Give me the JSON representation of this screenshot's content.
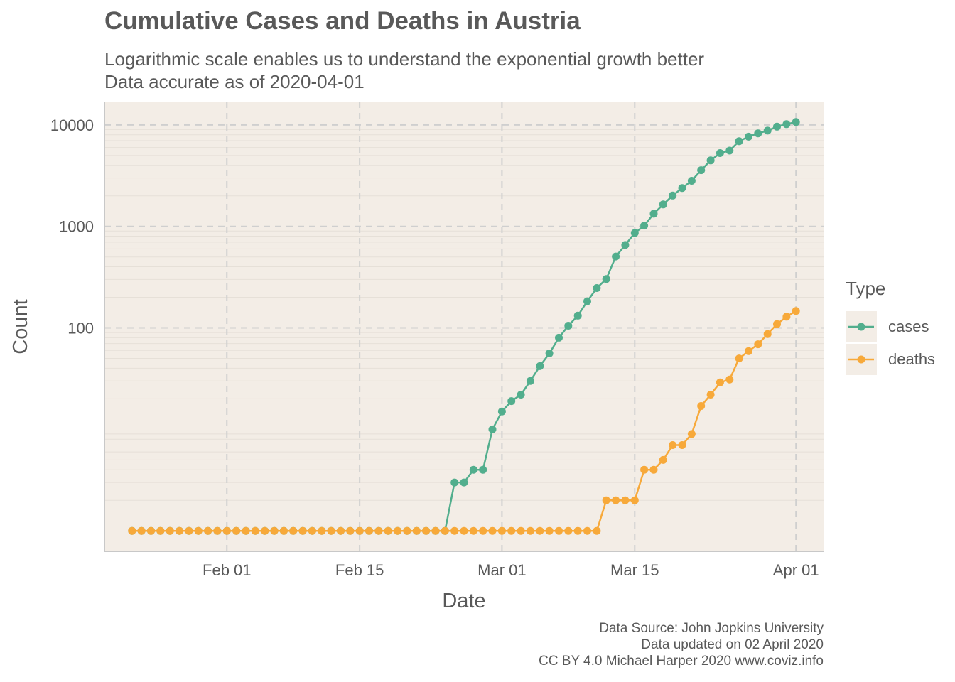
{
  "title": "Cumulative Cases and Deaths in Austria",
  "subtitle": [
    "Logarithmic scale enables us to understand the exponential growth better",
    "Data accurate as of 2020-04-01"
  ],
  "caption": [
    "Data Source: John Jopkins University",
    "Data updated on 02 April 2020",
    "CC BY 4.0 Michael Harper 2020 www.coviz.info"
  ],
  "colors": {
    "cases": "#52AE8D",
    "deaths": "#F7A93A",
    "panel": "#F3EDE6",
    "grid": "#CFCFCF"
  },
  "chart_data": {
    "type": "line",
    "title": "Cumulative Cases and Deaths in Austria",
    "xlabel": "Date",
    "ylabel": "Count",
    "y_scale": "log",
    "x_range": [
      "2020-01-22",
      "2020-04-01"
    ],
    "y_range": [
      1,
      10685
    ],
    "x_ticks": [
      {
        "date": "2020-02-01",
        "label": "Feb 01"
      },
      {
        "date": "2020-02-15",
        "label": "Feb 15"
      },
      {
        "date": "2020-03-01",
        "label": "Mar 01"
      },
      {
        "date": "2020-03-15",
        "label": "Mar 15"
      },
      {
        "date": "2020-04-01",
        "label": "Apr 01"
      }
    ],
    "y_ticks": [
      {
        "value": 100,
        "label": "100"
      },
      {
        "value": 1000,
        "label": "1000"
      },
      {
        "value": 10000,
        "label": "10000"
      }
    ],
    "grid": true,
    "legend_title": "Type",
    "legend_position": "right",
    "series": [
      {
        "name": "cases",
        "points": [
          [
            "2020-01-22",
            0
          ],
          [
            "2020-01-23",
            0
          ],
          [
            "2020-01-24",
            0
          ],
          [
            "2020-01-25",
            0
          ],
          [
            "2020-01-26",
            0
          ],
          [
            "2020-01-27",
            0
          ],
          [
            "2020-01-28",
            0
          ],
          [
            "2020-01-29",
            0
          ],
          [
            "2020-01-30",
            0
          ],
          [
            "2020-01-31",
            0
          ],
          [
            "2020-02-01",
            0
          ],
          [
            "2020-02-02",
            0
          ],
          [
            "2020-02-03",
            0
          ],
          [
            "2020-02-04",
            0
          ],
          [
            "2020-02-05",
            0
          ],
          [
            "2020-02-06",
            0
          ],
          [
            "2020-02-07",
            0
          ],
          [
            "2020-02-08",
            0
          ],
          [
            "2020-02-09",
            0
          ],
          [
            "2020-02-10",
            0
          ],
          [
            "2020-02-11",
            0
          ],
          [
            "2020-02-12",
            0
          ],
          [
            "2020-02-13",
            0
          ],
          [
            "2020-02-14",
            0
          ],
          [
            "2020-02-15",
            0
          ],
          [
            "2020-02-16",
            0
          ],
          [
            "2020-02-17",
            0
          ],
          [
            "2020-02-18",
            0
          ],
          [
            "2020-02-19",
            0
          ],
          [
            "2020-02-20",
            0
          ],
          [
            "2020-02-21",
            0
          ],
          [
            "2020-02-22",
            0
          ],
          [
            "2020-02-23",
            0
          ],
          [
            "2020-02-24",
            0
          ],
          [
            "2020-02-25",
            2
          ],
          [
            "2020-02-26",
            2
          ],
          [
            "2020-02-27",
            3
          ],
          [
            "2020-02-28",
            3
          ],
          [
            "2020-02-29",
            9
          ],
          [
            "2020-03-01",
            14
          ],
          [
            "2020-03-02",
            18
          ],
          [
            "2020-03-03",
            21
          ],
          [
            "2020-03-04",
            29
          ],
          [
            "2020-03-05",
            41
          ],
          [
            "2020-03-06",
            55
          ],
          [
            "2020-03-07",
            79
          ],
          [
            "2020-03-08",
            104
          ],
          [
            "2020-03-09",
            131
          ],
          [
            "2020-03-10",
            182
          ],
          [
            "2020-03-11",
            246
          ],
          [
            "2020-03-12",
            302
          ],
          [
            "2020-03-13",
            504
          ],
          [
            "2020-03-14",
            655
          ],
          [
            "2020-03-15",
            860
          ],
          [
            "2020-03-16",
            1018
          ],
          [
            "2020-03-17",
            1332
          ],
          [
            "2020-03-18",
            1646
          ],
          [
            "2020-03-19",
            2013
          ],
          [
            "2020-03-20",
            2388
          ],
          [
            "2020-03-21",
            2814
          ],
          [
            "2020-03-22",
            3582
          ],
          [
            "2020-03-23",
            4474
          ],
          [
            "2020-03-24",
            5283
          ],
          [
            "2020-03-25",
            5588
          ],
          [
            "2020-03-26",
            6909
          ],
          [
            "2020-03-27",
            7657
          ],
          [
            "2020-03-28",
            8271
          ],
          [
            "2020-03-29",
            8788
          ],
          [
            "2020-03-30",
            9618
          ],
          [
            "2020-03-31",
            10180
          ],
          [
            "2020-04-01",
            10685
          ]
        ]
      },
      {
        "name": "deaths",
        "points": [
          [
            "2020-01-22",
            0
          ],
          [
            "2020-01-23",
            0
          ],
          [
            "2020-01-24",
            0
          ],
          [
            "2020-01-25",
            0
          ],
          [
            "2020-01-26",
            0
          ],
          [
            "2020-01-27",
            0
          ],
          [
            "2020-01-28",
            0
          ],
          [
            "2020-01-29",
            0
          ],
          [
            "2020-01-30",
            0
          ],
          [
            "2020-01-31",
            0
          ],
          [
            "2020-02-01",
            0
          ],
          [
            "2020-02-02",
            0
          ],
          [
            "2020-02-03",
            0
          ],
          [
            "2020-02-04",
            0
          ],
          [
            "2020-02-05",
            0
          ],
          [
            "2020-02-06",
            0
          ],
          [
            "2020-02-07",
            0
          ],
          [
            "2020-02-08",
            0
          ],
          [
            "2020-02-09",
            0
          ],
          [
            "2020-02-10",
            0
          ],
          [
            "2020-02-11",
            0
          ],
          [
            "2020-02-12",
            0
          ],
          [
            "2020-02-13",
            0
          ],
          [
            "2020-02-14",
            0
          ],
          [
            "2020-02-15",
            0
          ],
          [
            "2020-02-16",
            0
          ],
          [
            "2020-02-17",
            0
          ],
          [
            "2020-02-18",
            0
          ],
          [
            "2020-02-19",
            0
          ],
          [
            "2020-02-20",
            0
          ],
          [
            "2020-02-21",
            0
          ],
          [
            "2020-02-22",
            0
          ],
          [
            "2020-02-23",
            0
          ],
          [
            "2020-02-24",
            0
          ],
          [
            "2020-02-25",
            0
          ],
          [
            "2020-02-26",
            0
          ],
          [
            "2020-02-27",
            0
          ],
          [
            "2020-02-28",
            0
          ],
          [
            "2020-02-29",
            0
          ],
          [
            "2020-03-01",
            0
          ],
          [
            "2020-03-02",
            0
          ],
          [
            "2020-03-03",
            0
          ],
          [
            "2020-03-04",
            0
          ],
          [
            "2020-03-05",
            0
          ],
          [
            "2020-03-06",
            0
          ],
          [
            "2020-03-07",
            0
          ],
          [
            "2020-03-08",
            0
          ],
          [
            "2020-03-09",
            0
          ],
          [
            "2020-03-10",
            0
          ],
          [
            "2020-03-11",
            0
          ],
          [
            "2020-03-12",
            1
          ],
          [
            "2020-03-13",
            1
          ],
          [
            "2020-03-14",
            1
          ],
          [
            "2020-03-15",
            1
          ],
          [
            "2020-03-16",
            3
          ],
          [
            "2020-03-17",
            3
          ],
          [
            "2020-03-18",
            4
          ],
          [
            "2020-03-19",
            6
          ],
          [
            "2020-03-20",
            6
          ],
          [
            "2020-03-21",
            8
          ],
          [
            "2020-03-22",
            16
          ],
          [
            "2020-03-23",
            21
          ],
          [
            "2020-03-24",
            28
          ],
          [
            "2020-03-25",
            30
          ],
          [
            "2020-03-26",
            49
          ],
          [
            "2020-03-27",
            58
          ],
          [
            "2020-03-28",
            68
          ],
          [
            "2020-03-29",
            86
          ],
          [
            "2020-03-30",
            108
          ],
          [
            "2020-03-31",
            128
          ],
          [
            "2020-04-01",
            146
          ]
        ]
      }
    ]
  }
}
